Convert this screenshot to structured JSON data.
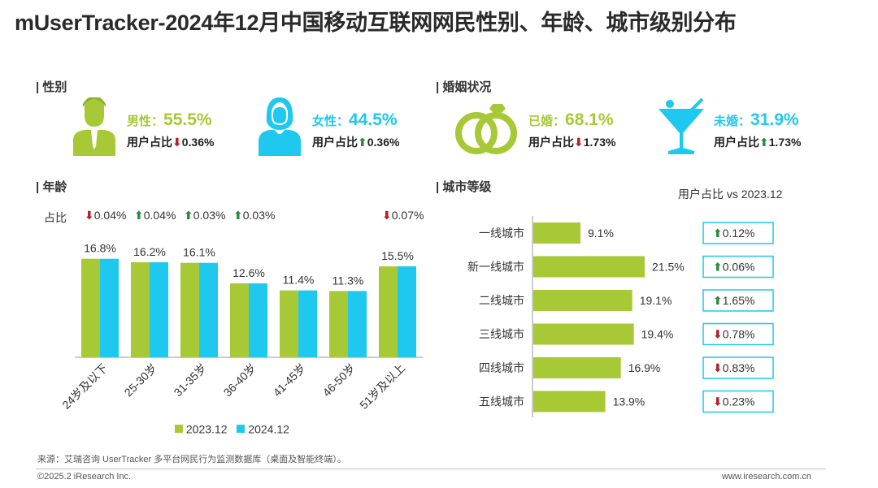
{
  "title": "mUserTracker-2024年12月中国移动互联网网民性别、年龄、城市级别分布",
  "colors": {
    "green": "#a6c935",
    "cyan": "#1ec8ee",
    "up": "#2e8b3e",
    "down": "#b3202a",
    "text": "#333333"
  },
  "gender": {
    "section": "| 性别",
    "male": {
      "icon": "male-person-icon",
      "label": "男性：",
      "value": "55.5%",
      "sub_prefix": "用户占比",
      "direction": "down",
      "change": "0.36%"
    },
    "female": {
      "icon": "female-person-icon",
      "label": "女性：",
      "value": "44.5%",
      "sub_prefix": "用户占比",
      "direction": "up",
      "change": "0.36%"
    }
  },
  "marriage": {
    "section": "| 婚姻状况",
    "married": {
      "icon": "wedding-rings-icon",
      "label": "已婚：",
      "value": "68.1%",
      "sub_prefix": "用户占比",
      "direction": "down",
      "change": "1.73%"
    },
    "unmarried": {
      "icon": "cocktail-glass-icon",
      "label": "未婚：",
      "value": "31.9%",
      "sub_prefix": "用户占比",
      "direction": "up",
      "change": "1.73%"
    }
  },
  "age": {
    "section": "| 年龄",
    "change_label": "占比",
    "legend": [
      "2023.12",
      "2024.12"
    ],
    "chart_data": {
      "type": "bar",
      "categories": [
        "24岁及以下",
        "25-30岁",
        "31-35岁",
        "36-40岁",
        "41-45岁",
        "46-50岁",
        "51岁及以上"
      ],
      "series": [
        {
          "name": "2023.12",
          "values": [
            16.8,
            16.2,
            16.1,
            12.6,
            11.4,
            11.3,
            15.5
          ]
        },
        {
          "name": "2024.12",
          "values": [
            16.8,
            16.2,
            16.1,
            12.6,
            11.4,
            11.3,
            15.5
          ]
        }
      ],
      "data_labels": [
        "16.8%",
        "16.2%",
        "16.1%",
        "12.6%",
        "11.4%",
        "11.3%",
        "15.5%"
      ],
      "changes": [
        {
          "direction": "down",
          "value": "0.04%"
        },
        {
          "direction": "up",
          "value": "0.04%"
        },
        {
          "direction": "up",
          "value": "0.03%"
        },
        {
          "direction": "up",
          "value": "0.03%"
        },
        null,
        null,
        {
          "direction": "down",
          "value": "0.07%"
        }
      ]
    }
  },
  "city": {
    "section": "| 城市等级",
    "compare_label": "用户占比 vs 2023.12",
    "chart_data": {
      "type": "bar",
      "orientation": "horizontal",
      "categories": [
        "一线城市",
        "新一线城市",
        "二线城市",
        "三线城市",
        "四线城市",
        "五线城市"
      ],
      "values": [
        9.1,
        21.5,
        19.1,
        19.4,
        16.9,
        13.9
      ],
      "data_labels": [
        "9.1%",
        "21.5%",
        "19.1%",
        "19.4%",
        "16.9%",
        "13.9%"
      ],
      "changes": [
        {
          "direction": "up",
          "value": "0.12%"
        },
        {
          "direction": "up",
          "value": "0.06%"
        },
        {
          "direction": "up",
          "value": "1.65%"
        },
        {
          "direction": "down",
          "value": "0.78%"
        },
        {
          "direction": "down",
          "value": "0.83%"
        },
        {
          "direction": "down",
          "value": "0.23%"
        }
      ]
    }
  },
  "footer": {
    "source": "来源：艾瑞咨询 UserTracker 多平台网民行为监测数据库（桌面及智能终端）。",
    "copyright": "©2025.2 iResearch Inc.",
    "website": "www.iresearch.com.cn"
  }
}
